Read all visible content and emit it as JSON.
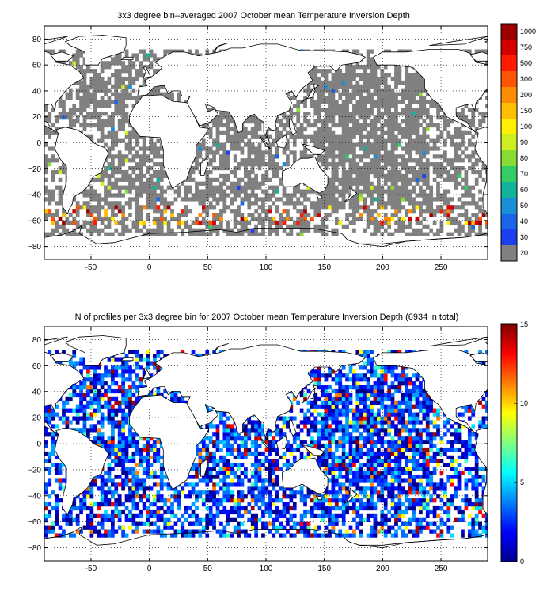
{
  "panels": [
    {
      "title": "3x3 degree bin–averaged 2007 October mean Temperature Inversion Depth",
      "lon_ticks": [
        "-50",
        "0",
        "50",
        "100",
        "150",
        "200",
        "250"
      ],
      "lat_ticks": [
        "80",
        "60",
        "40",
        "20",
        "0",
        "−20",
        "−40",
        "−60",
        "−80"
      ],
      "colorbar": {
        "type": "discrete",
        "labels": [
          "1000",
          "750",
          "500",
          "300",
          "200",
          "150",
          "100",
          "90",
          "80",
          "70",
          "60",
          "50",
          "40",
          "30",
          "20"
        ],
        "colors": [
          "#9c0000",
          "#d40000",
          "#ff1a00",
          "#ff5500",
          "#ff8c00",
          "#ffbf00",
          "#ffef00",
          "#ccee22",
          "#88dd33",
          "#33cc66",
          "#11b39a",
          "#1a8fd6",
          "#1a66e6",
          "#1a40f0",
          "#808080"
        ]
      }
    },
    {
      "title": "N of profiles per 3x3 degree bin for 2007 October mean Temperature Inversion Depth  (6934 in total)",
      "lon_ticks": [
        "-50",
        "0",
        "50",
        "100",
        "150",
        "200",
        "250"
      ],
      "lat_ticks": [
        "80",
        "60",
        "40",
        "20",
        "0",
        "−20",
        "−40",
        "−60",
        "−80"
      ],
      "colorbar": {
        "type": "continuous",
        "labels": [
          "15",
          "10",
          "5",
          "0"
        ],
        "values": [
          15,
          10,
          5,
          0
        ]
      }
    }
  ],
  "map_data": {
    "lon_range": [
      -90,
      290
    ],
    "lat_range": [
      -90,
      90
    ],
    "bin_size_deg": 3,
    "grid": "dotted"
  }
}
